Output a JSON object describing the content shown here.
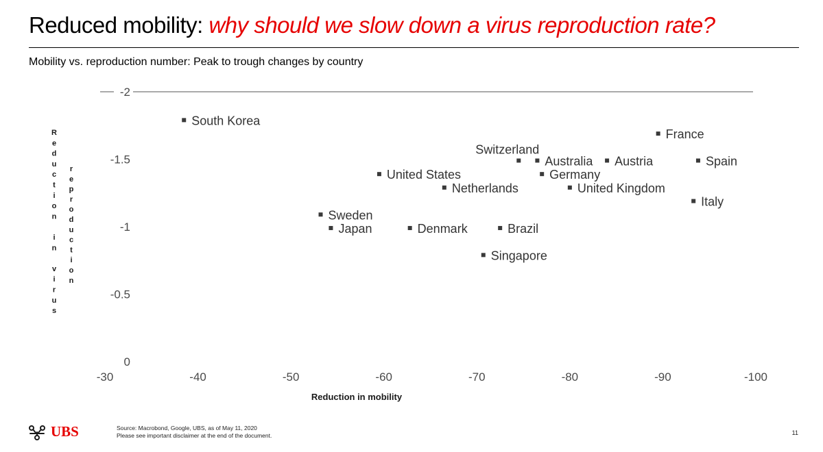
{
  "slide": {
    "title_plain": "Reduced mobility: ",
    "title_accent": "why should we slow down a virus reproduction rate?",
    "accent_color": "#e60000",
    "subtitle": "Mobility vs. reproduction number: Peak to trough changes by country"
  },
  "chart_data": {
    "type": "scatter",
    "title": "Mobility vs. reproduction number: Peak to trough changes by country",
    "xlabel": "Reduction in mobility",
    "ylabel": "Reduction in virus reproduction",
    "xlim": [
      -30,
      -100
    ],
    "ylim": [
      0,
      -2
    ],
    "x_ticks": [
      -30,
      -40,
      -50,
      -60,
      -70,
      -80,
      -90,
      -100
    ],
    "y_ticks": [
      0,
      -0.5,
      -1,
      -1.5,
      -2
    ],
    "grid": false,
    "marker_color": "#3a3a3a",
    "points": [
      {
        "label": "South Korea",
        "x": -38.5,
        "y": -1.79
      },
      {
        "label": "France",
        "x": -89.5,
        "y": -1.69
      },
      {
        "label": "Switzerland",
        "x": -74.5,
        "y": -1.49
      },
      {
        "label": "Australia",
        "x": -76.5,
        "y": -1.49
      },
      {
        "label": "Austria",
        "x": -84,
        "y": -1.49
      },
      {
        "label": "Spain",
        "x": -93.8,
        "y": -1.49
      },
      {
        "label": "United States",
        "x": -59.5,
        "y": -1.39
      },
      {
        "label": "Germany",
        "x": -77,
        "y": -1.39
      },
      {
        "label": "Netherlands",
        "x": -66.5,
        "y": -1.29
      },
      {
        "label": "United Kingdom",
        "x": -80,
        "y": -1.29
      },
      {
        "label": "Italy",
        "x": -93.3,
        "y": -1.19
      },
      {
        "label": "Sweden",
        "x": -53.2,
        "y": -1.09
      },
      {
        "label": "Japan",
        "x": -54.3,
        "y": -0.99
      },
      {
        "label": "Denmark",
        "x": -62.8,
        "y": -0.99
      },
      {
        "label": "Brazil",
        "x": -72.5,
        "y": -0.99
      },
      {
        "label": "Singapore",
        "x": -70.7,
        "y": -0.79
      }
    ]
  },
  "footer": {
    "logo_text": "UBS",
    "source_line1": "Source: Macrobond, Google, UBS, as of May 11, 2020",
    "source_line2": "Please see important disclaimer at the end of the document.",
    "page_number": "11"
  }
}
